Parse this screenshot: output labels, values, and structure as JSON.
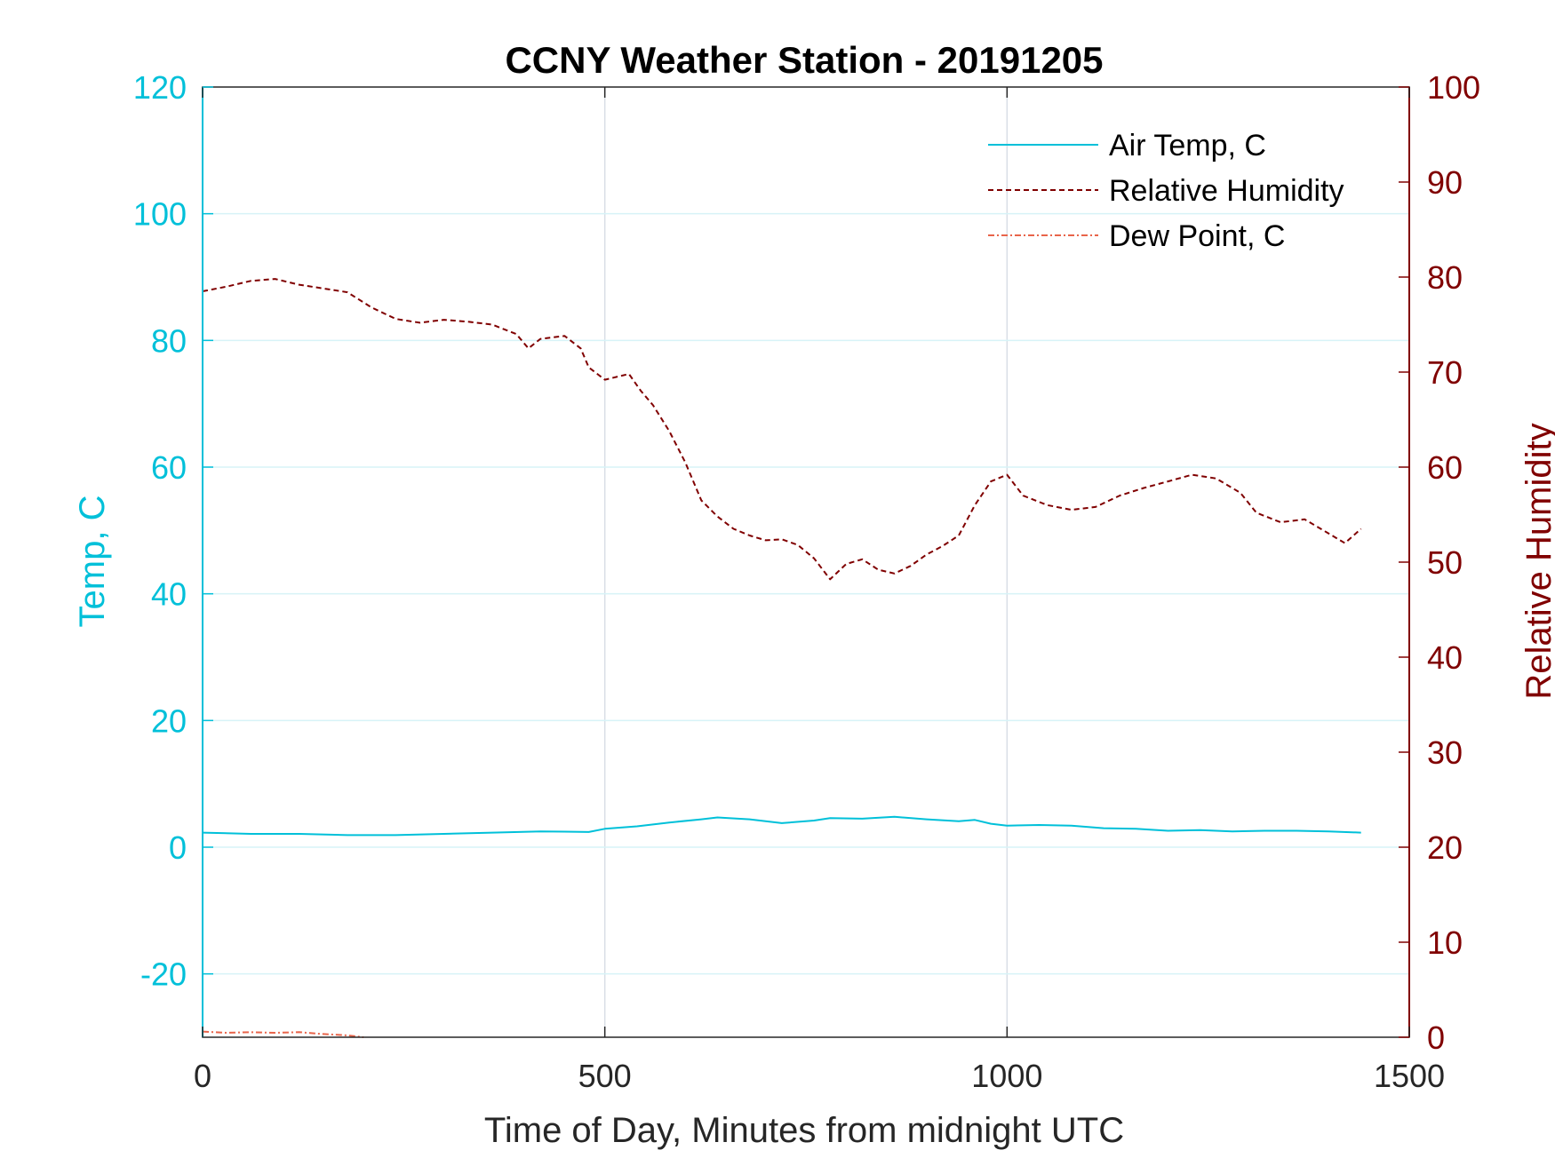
{
  "chart_data": {
    "type": "line",
    "title": "CCNY Weather Station - 20191205",
    "xlabel": "Time of Day, Minutes from midnight UTC",
    "ylabel_left": "Temp, C",
    "ylabel_right": "Relative Humidity",
    "xlim": [
      0,
      1500
    ],
    "ylim_left": [
      -30,
      120
    ],
    "ylim_right": [
      0,
      100
    ],
    "x_ticks": [
      "0",
      "500",
      "1000",
      "1500"
    ],
    "y_left_ticks": [
      "-20",
      "0",
      "20",
      "40",
      "60",
      "80",
      "100",
      "120"
    ],
    "y_right_ticks": [
      "0",
      "10",
      "20",
      "30",
      "40",
      "50",
      "60",
      "70",
      "80",
      "90",
      "100"
    ],
    "grid": true,
    "legend_position": "top-right",
    "series": [
      {
        "name": "Air Temp, C",
        "axis": "left",
        "color": "#00c0d9",
        "style": "solid",
        "x": [
          0,
          60,
          120,
          180,
          240,
          300,
          360,
          420,
          480,
          500,
          540,
          580,
          620,
          640,
          680,
          720,
          760,
          780,
          820,
          860,
          900,
          940,
          960,
          980,
          1000,
          1040,
          1080,
          1120,
          1160,
          1200,
          1240,
          1280,
          1320,
          1360,
          1400,
          1440
        ],
        "values": [
          2.3,
          2.1,
          2.1,
          1.9,
          1.9,
          2.1,
          2.3,
          2.5,
          2.4,
          2.9,
          3.3,
          3.9,
          4.4,
          4.7,
          4.4,
          3.8,
          4.2,
          4.6,
          4.5,
          4.8,
          4.4,
          4.1,
          4.3,
          3.7,
          3.4,
          3.5,
          3.4,
          3.0,
          2.9,
          2.6,
          2.7,
          2.5,
          2.6,
          2.6,
          2.5,
          2.3
        ]
      },
      {
        "name": "Relative Humidity",
        "axis": "right",
        "color": "#800000",
        "style": "dashed",
        "x": [
          0,
          30,
          60,
          90,
          120,
          150,
          180,
          210,
          240,
          270,
          300,
          330,
          360,
          390,
          405,
          420,
          450,
          470,
          480,
          500,
          530,
          545,
          560,
          580,
          600,
          620,
          640,
          660,
          680,
          700,
          720,
          740,
          760,
          780,
          800,
          820,
          840,
          860,
          880,
          900,
          920,
          940,
          960,
          980,
          1000,
          1020,
          1050,
          1080,
          1110,
          1140,
          1170,
          1200,
          1230,
          1260,
          1290,
          1310,
          1340,
          1370,
          1400,
          1420,
          1440
        ],
        "values": [
          78.5,
          79.0,
          79.6,
          79.8,
          79.2,
          78.8,
          78.4,
          76.8,
          75.6,
          75.2,
          75.5,
          75.3,
          75.0,
          74.0,
          72.5,
          73.5,
          73.8,
          72.5,
          70.5,
          69.2,
          69.8,
          68.0,
          66.5,
          63.8,
          60.5,
          56.5,
          54.8,
          53.5,
          52.8,
          52.3,
          52.4,
          51.8,
          50.4,
          48.2,
          49.8,
          50.3,
          49.2,
          48.8,
          49.6,
          50.8,
          51.7,
          52.8,
          56.0,
          58.5,
          59.2,
          57.0,
          56.0,
          55.5,
          55.8,
          57.0,
          57.8,
          58.5,
          59.2,
          58.8,
          57.3,
          55.2,
          54.2,
          54.5,
          53.0,
          52.0,
          53.5
        ]
      },
      {
        "name": "Dew Point, C",
        "axis": "left",
        "color": "#e8644a",
        "style": "dashdot",
        "x": [
          0,
          30,
          60,
          90,
          120,
          150,
          180,
          200
        ],
        "values": [
          -29.1,
          -29.3,
          -29.2,
          -29.3,
          -29.2,
          -29.5,
          -29.7,
          -30.0
        ]
      }
    ]
  }
}
